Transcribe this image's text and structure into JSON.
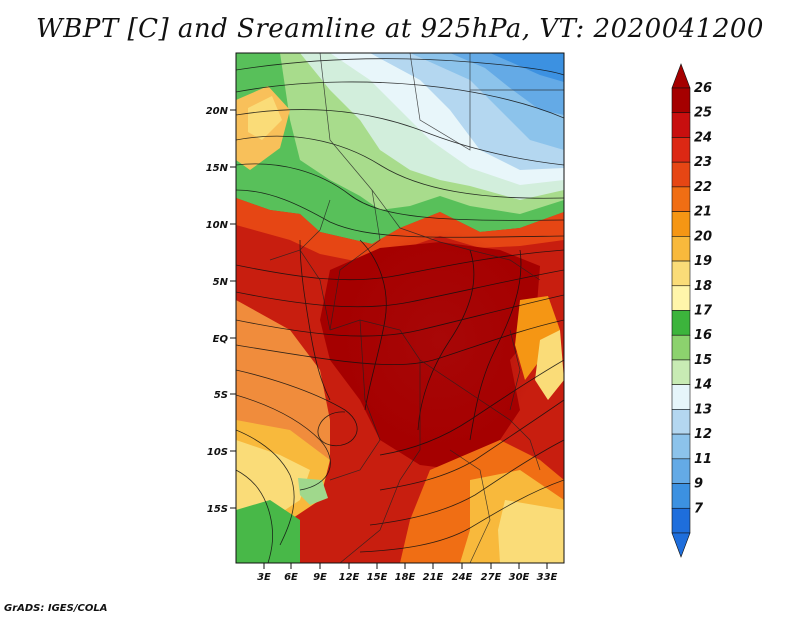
{
  "title": "WBPT [C] and Sreamline at 925hPa, VT: 2020041200",
  "credit": "GrADS: IGES/COLA",
  "map": {
    "lon_labels": [
      "3E",
      "6E",
      "9E",
      "12E",
      "15E",
      "18E",
      "21E",
      "24E",
      "27E",
      "30E",
      "33E"
    ],
    "lat_labels": [
      "20N",
      "15N",
      "10N",
      "5N",
      "EQ",
      "5S",
      "10S",
      "15S"
    ],
    "field": "wet-bulb potential temperature",
    "overlay": "streamlines"
  },
  "colorbar": {
    "labels": [
      "26",
      "25",
      "24",
      "23",
      "22",
      "21",
      "20",
      "19",
      "18",
      "17",
      "16",
      "15",
      "14",
      "13",
      "12",
      "11",
      "9",
      "7"
    ],
    "colors": [
      "#a50000",
      "#c80f0f",
      "#dc2814",
      "#e64614",
      "#f06e14",
      "#f59614",
      "#f8b93c",
      "#fadc78",
      "#fff5aa",
      "#3cb43c",
      "#8cd26e",
      "#c8ebb4",
      "#e6f5fa",
      "#b4d7f0",
      "#8cc3eb",
      "#64aae6",
      "#3c91e1",
      "#1e6edc"
    ]
  }
}
